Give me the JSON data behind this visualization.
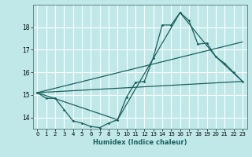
{
  "xlabel": "Humidex (Indice chaleur)",
  "background_color": "#c0e8e8",
  "grid_color": "#ffffff",
  "line_color": "#1a6060",
  "xlim": [
    -0.5,
    23.5
  ],
  "ylim": [
    13.5,
    19.0
  ],
  "yticks": [
    14,
    15,
    16,
    17,
    18
  ],
  "xticks": [
    0,
    1,
    2,
    3,
    4,
    5,
    6,
    7,
    8,
    9,
    10,
    11,
    12,
    13,
    14,
    15,
    16,
    17,
    18,
    19,
    20,
    21,
    22,
    23
  ],
  "series1_x": [
    0,
    1,
    2,
    3,
    4,
    5,
    6,
    7,
    8,
    9,
    10,
    11,
    12,
    13,
    14,
    15,
    16,
    17,
    18,
    19,
    20,
    21,
    22,
    23
  ],
  "series1_y": [
    15.1,
    14.85,
    14.85,
    14.35,
    13.85,
    13.75,
    13.6,
    13.55,
    13.75,
    13.9,
    14.9,
    15.55,
    15.6,
    16.65,
    18.1,
    18.1,
    18.65,
    18.3,
    17.25,
    17.3,
    16.7,
    16.4,
    16.0,
    15.6
  ],
  "series2_x": [
    0,
    23
  ],
  "series2_y": [
    15.1,
    15.6
  ],
  "series3_x": [
    0,
    23
  ],
  "series3_y": [
    15.1,
    17.35
  ],
  "series4_x": [
    0,
    9,
    16,
    20,
    23
  ],
  "series4_y": [
    15.1,
    13.9,
    18.65,
    16.7,
    15.6
  ]
}
